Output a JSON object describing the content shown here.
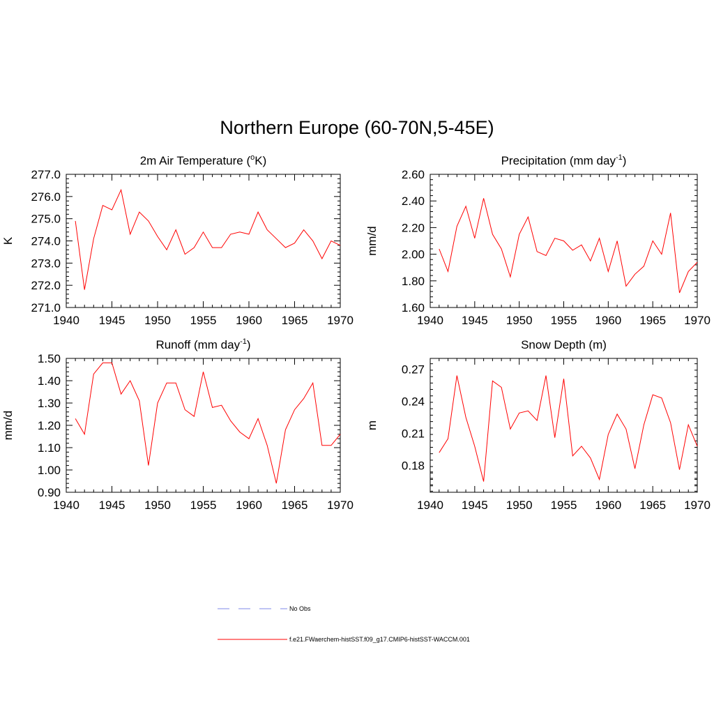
{
  "title": "Northern Europe (60-70N,5-45E)",
  "legend": {
    "items": [
      {
        "label": "No Obs",
        "color": "#aab0f0",
        "style": "dashed"
      },
      {
        "label": "f.e21.FWaerchem-histSST.f09_g17.CMIP6-histSST-WACCM.001",
        "color": "#ff0000",
        "style": "solid"
      }
    ]
  },
  "chart_data": [
    {
      "type": "line",
      "title": "2m Air Temperature (°K)",
      "title_main": "2m Air Temperature (",
      "title_sup": "o",
      "title_end": "K)",
      "ylabel": "K",
      "xlim": [
        1940,
        1970
      ],
      "ylim": [
        271.0,
        277.0
      ],
      "xticks": [
        1940,
        1945,
        1950,
        1955,
        1960,
        1965,
        1970
      ],
      "yticks": [
        271.0,
        272.0,
        273.0,
        274.0,
        275.0,
        276.0,
        277.0
      ],
      "ydecimals": 1,
      "series": [
        {
          "color": "#ff0000",
          "x": [
            1941,
            1942,
            1943,
            1944,
            1945,
            1946,
            1947,
            1948,
            1949,
            1950,
            1951,
            1952,
            1953,
            1954,
            1955,
            1956,
            1957,
            1958,
            1959,
            1960,
            1961,
            1962,
            1963,
            1964,
            1965,
            1966,
            1967,
            1968,
            1969,
            1970
          ],
          "values": [
            274.9,
            271.8,
            274.1,
            275.6,
            275.4,
            276.3,
            274.3,
            275.3,
            274.9,
            274.2,
            273.6,
            274.5,
            273.4,
            273.7,
            274.4,
            273.7,
            273.7,
            274.3,
            274.4,
            274.3,
            275.3,
            274.5,
            274.1,
            273.7,
            273.9,
            274.5,
            274.0,
            273.2,
            274.0,
            273.8
          ]
        }
      ]
    },
    {
      "type": "line",
      "title": "Precipitation (mm day-1)",
      "title_main": "Precipitation (mm day",
      "title_sup": "-1",
      "title_end": ")",
      "ylabel": "mm/d",
      "xlim": [
        1940,
        1970
      ],
      "ylim": [
        1.6,
        2.6
      ],
      "xticks": [
        1940,
        1945,
        1950,
        1955,
        1960,
        1965,
        1970
      ],
      "yticks": [
        1.6,
        1.8,
        2.0,
        2.2,
        2.4,
        2.6
      ],
      "ydecimals": 2,
      "series": [
        {
          "color": "#ff0000",
          "x": [
            1941,
            1942,
            1943,
            1944,
            1945,
            1946,
            1947,
            1948,
            1949,
            1950,
            1951,
            1952,
            1953,
            1954,
            1955,
            1956,
            1957,
            1958,
            1959,
            1960,
            1961,
            1962,
            1963,
            1964,
            1965,
            1966,
            1967,
            1968,
            1969,
            1970
          ],
          "values": [
            2.04,
            1.87,
            2.21,
            2.36,
            2.12,
            2.42,
            2.15,
            2.04,
            1.83,
            2.15,
            2.28,
            2.02,
            1.99,
            2.12,
            2.1,
            2.03,
            2.07,
            1.95,
            2.12,
            1.87,
            2.1,
            1.76,
            1.85,
            1.91,
            2.1,
            2.0,
            2.31,
            1.71,
            1.87,
            1.94
          ]
        }
      ]
    },
    {
      "type": "line",
      "title": "Runoff (mm day-1)",
      "title_main": "Runoff (mm day",
      "title_sup": "-1",
      "title_end": ")",
      "ylabel": "mm/d",
      "xlim": [
        1940,
        1970
      ],
      "ylim": [
        0.9,
        1.5
      ],
      "xticks": [
        1940,
        1945,
        1950,
        1955,
        1960,
        1965,
        1970
      ],
      "yticks": [
        0.9,
        1.0,
        1.1,
        1.2,
        1.3,
        1.4,
        1.5
      ],
      "ydecimals": 2,
      "series": [
        {
          "color": "#ff0000",
          "x": [
            1941,
            1942,
            1943,
            1944,
            1945,
            1946,
            1947,
            1948,
            1949,
            1950,
            1951,
            1952,
            1953,
            1954,
            1955,
            1956,
            1957,
            1958,
            1959,
            1960,
            1961,
            1962,
            1963,
            1964,
            1965,
            1966,
            1967,
            1968,
            1969,
            1970
          ],
          "values": [
            1.23,
            1.16,
            1.43,
            1.48,
            1.48,
            1.34,
            1.4,
            1.31,
            1.02,
            1.3,
            1.39,
            1.39,
            1.27,
            1.24,
            1.44,
            1.28,
            1.29,
            1.22,
            1.17,
            1.14,
            1.23,
            1.11,
            0.94,
            1.18,
            1.27,
            1.32,
            1.39,
            1.11,
            1.11,
            1.16
          ]
        }
      ]
    },
    {
      "type": "line",
      "title": "Snow Depth (m)",
      "title_main": "Snow Depth (m)",
      "title_sup": "",
      "title_end": "",
      "ylabel": "m",
      "xlim": [
        1940,
        1970
      ],
      "ylim": [
        0.155,
        0.28
      ],
      "xticks": [
        1940,
        1945,
        1950,
        1955,
        1960,
        1965,
        1970
      ],
      "yticks": [
        0.18,
        0.21,
        0.24,
        0.27
      ],
      "ydecimals": 2,
      "series": [
        {
          "color": "#ff0000",
          "x": [
            1941,
            1942,
            1943,
            1944,
            1945,
            1946,
            1947,
            1948,
            1949,
            1950,
            1951,
            1952,
            1953,
            1954,
            1955,
            1956,
            1957,
            1958,
            1959,
            1960,
            1961,
            1962,
            1963,
            1964,
            1965,
            1966,
            1967,
            1968,
            1969,
            1970
          ],
          "values": [
            0.192,
            0.205,
            0.264,
            0.225,
            0.198,
            0.165,
            0.259,
            0.253,
            0.214,
            0.229,
            0.231,
            0.222,
            0.264,
            0.206,
            0.261,
            0.189,
            0.198,
            0.187,
            0.167,
            0.209,
            0.228,
            0.214,
            0.177,
            0.218,
            0.246,
            0.243,
            0.22,
            0.176,
            0.218,
            0.198
          ]
        }
      ]
    }
  ]
}
